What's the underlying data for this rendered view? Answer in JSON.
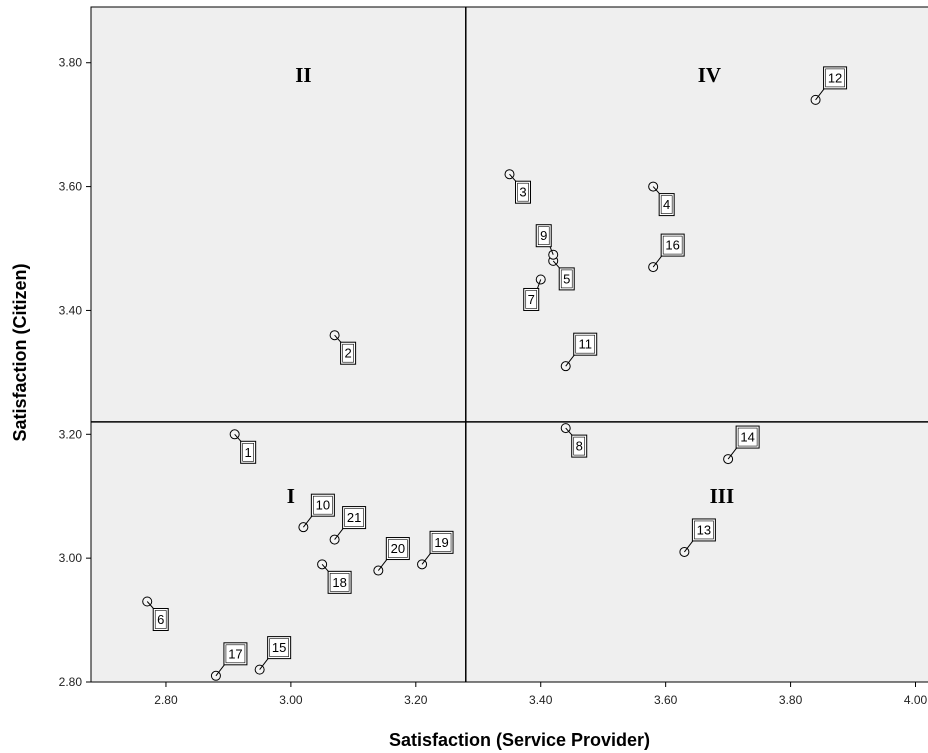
{
  "chart_data": {
    "type": "scatter",
    "xlabel": "Satisfaction (Service Provider)",
    "ylabel": "Satisfaction (Citizen)",
    "xlim": [
      2.68,
      4.02
    ],
    "ylim": [
      2.8,
      3.89
    ],
    "x_ticks": [
      "2.80",
      "3.00",
      "3.20",
      "3.40",
      "3.60",
      "3.80",
      "4.00"
    ],
    "y_ticks": [
      "2.80",
      "3.00",
      "3.20",
      "3.40",
      "3.60",
      "3.80"
    ],
    "reference_lines": {
      "x": 3.28,
      "y": 3.22
    },
    "quadrants": [
      {
        "label": "I",
        "x": 3.0,
        "y": 3.1
      },
      {
        "label": "II",
        "x": 3.02,
        "y": 3.78
      },
      {
        "label": "III",
        "x": 3.69,
        "y": 3.1
      },
      {
        "label": "IV",
        "x": 3.67,
        "y": 3.78
      }
    ],
    "points": [
      {
        "label": "1",
        "x": 2.91,
        "y": 3.2,
        "pos": "below-right"
      },
      {
        "label": "2",
        "x": 3.07,
        "y": 3.36,
        "pos": "below-right"
      },
      {
        "label": "3",
        "x": 3.35,
        "y": 3.62,
        "pos": "below-right"
      },
      {
        "label": "4",
        "x": 3.58,
        "y": 3.6,
        "pos": "below-right"
      },
      {
        "label": "5",
        "x": 3.42,
        "y": 3.48,
        "pos": "below-right"
      },
      {
        "label": "6",
        "x": 2.77,
        "y": 2.93,
        "pos": "below-right"
      },
      {
        "label": "7",
        "x": 3.4,
        "y": 3.45,
        "pos": "below-left"
      },
      {
        "label": "8",
        "x": 3.44,
        "y": 3.21,
        "pos": "below-right"
      },
      {
        "label": "9",
        "x": 3.42,
        "y": 3.49,
        "pos": "above-left"
      },
      {
        "label": "10",
        "x": 3.02,
        "y": 3.05,
        "pos": "above-right"
      },
      {
        "label": "11",
        "x": 3.44,
        "y": 3.31,
        "pos": "above-right"
      },
      {
        "label": "12",
        "x": 3.84,
        "y": 3.74,
        "pos": "above-right"
      },
      {
        "label": "13",
        "x": 3.63,
        "y": 3.01,
        "pos": "above-right"
      },
      {
        "label": "14",
        "x": 3.7,
        "y": 3.16,
        "pos": "above-right"
      },
      {
        "label": "15",
        "x": 2.95,
        "y": 2.82,
        "pos": "above-right"
      },
      {
        "label": "16",
        "x": 3.58,
        "y": 3.47,
        "pos": "above-right"
      },
      {
        "label": "17",
        "x": 2.88,
        "y": 2.81,
        "pos": "above-right"
      },
      {
        "label": "18",
        "x": 3.05,
        "y": 2.99,
        "pos": "below-right"
      },
      {
        "label": "19",
        "x": 3.21,
        "y": 2.99,
        "pos": "above-right"
      },
      {
        "label": "20",
        "x": 3.14,
        "y": 2.98,
        "pos": "above-right"
      },
      {
        "label": "21",
        "x": 3.07,
        "y": 3.03,
        "pos": "above-right"
      }
    ],
    "colors": {
      "plot_background": "#efefef",
      "marker_fill": "#f4f4f4",
      "stroke": "#000000"
    }
  }
}
